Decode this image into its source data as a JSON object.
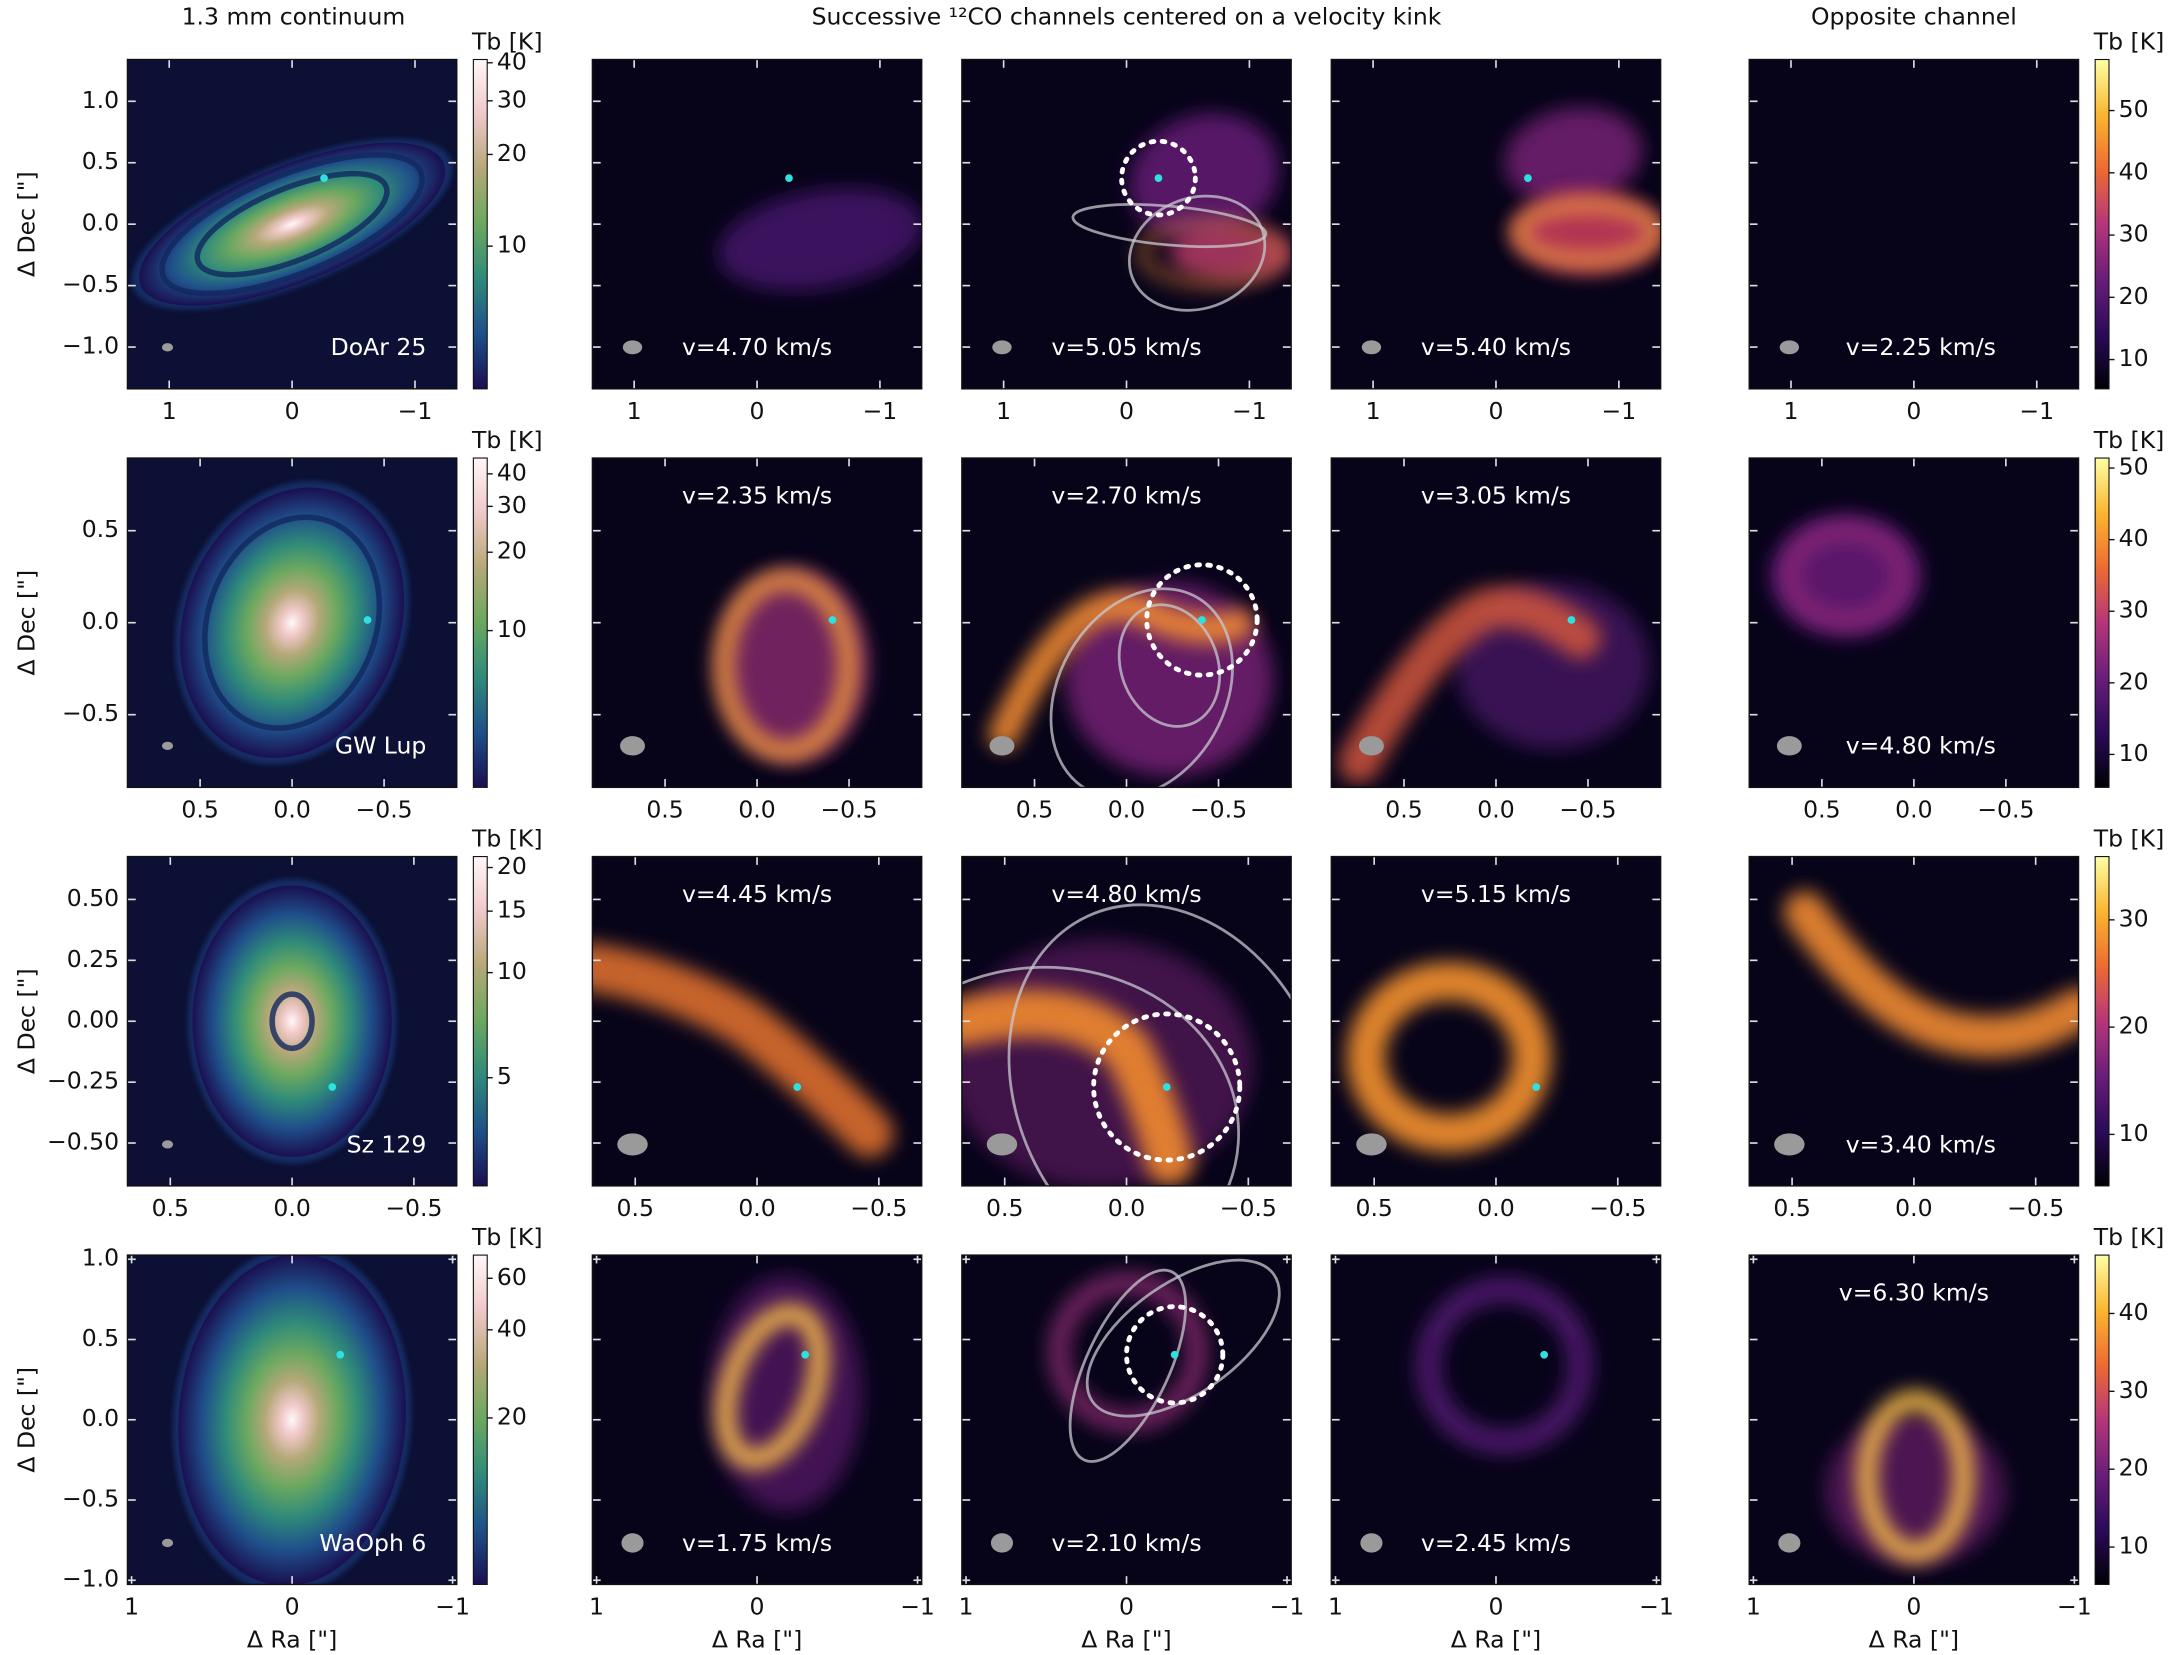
{
  "header": {
    "continuum": "1.3 mm continuum",
    "channels": "Successive ¹²CO channels centered on a velocity kink",
    "opposite": "Opposite channel"
  },
  "x_label": "Δ Ra [\"]",
  "y_label": "Δ Dec [\"]",
  "colorbar_label": "Tb [K]",
  "kink_color": "#2ee0e0",
  "kink_circle_radius": 0.3,
  "cmaps": {
    "continuum": [
      "#1a0f50",
      "#1f4f8a",
      "#2f8a7a",
      "#6aa860",
      "#b4a878",
      "#f0c8c8",
      "#fff8f8"
    ],
    "channel": [
      "#000004",
      "#2a0b5a",
      "#6a1d7a",
      "#b5367a",
      "#ef6a32",
      "#fbb630",
      "#fcffa4"
    ]
  },
  "rows": [
    {
      "source": "DoAr 25",
      "xlim": [
        1.34,
        -1.34
      ],
      "ylim": [
        -1.34,
        1.34
      ],
      "xticks": [
        1,
        0,
        {
          "value": -1,
          "label": "−1"
        }
      ],
      "yticks": [
        {
          "value": -1,
          "label": "−1.0"
        },
        {
          "value": -0.5,
          "label": "−0.5"
        },
        {
          "value": 0,
          "label": "0.0"
        },
        0.5,
        {
          "value": 1,
          "label": "1.0"
        }
      ],
      "kink": [
        -0.26,
        0.375
      ],
      "velocities": [
        "v=4.70 km/s",
        "v=5.05 km/s",
        "v=5.40 km/s",
        "v=2.25 km/s"
      ],
      "continuum_colorbar": {
        "scale": "log",
        "clim": [
          3.4,
          41
        ],
        "ticks": [
          10,
          20,
          30,
          40
        ]
      },
      "channel_colorbar": {
        "scale": "linear",
        "clim": [
          5.3,
          58.2
        ],
        "ticks": [
          10,
          20,
          30,
          40,
          50
        ]
      }
    },
    {
      "source": "GW Lup",
      "xlim": [
        0.895,
        -0.895
      ],
      "ylim": [
        -0.895,
        0.895
      ],
      "xticks": [
        0.5,
        {
          "value": 0,
          "label": "0.0"
        },
        {
          "value": -0.5,
          "label": "−0.5"
        }
      ],
      "yticks": [
        {
          "value": -0.5,
          "label": "−0.5"
        },
        {
          "value": 0,
          "label": "0.0"
        },
        0.5
      ],
      "kink": [
        -0.41,
        0.015
      ],
      "velocities": [
        "v=2.35 km/s",
        "v=2.70 km/s",
        "v=3.05 km/s",
        "v=4.80 km/s"
      ],
      "continuum_colorbar": {
        "scale": "log",
        "clim": [
          2.5,
          46
        ],
        "ticks": [
          10,
          20,
          30,
          40
        ]
      },
      "channel_colorbar": {
        "scale": "linear",
        "clim": [
          5.4,
          51.4
        ],
        "ticks": [
          10,
          20,
          30,
          40,
          50
        ]
      }
    },
    {
      "source": "Sz 129",
      "xlim": [
        0.676,
        -0.676
      ],
      "ylim": [
        -0.676,
        0.676
      ],
      "xticks": [
        0.5,
        {
          "value": 0,
          "label": "0.0"
        },
        {
          "value": -0.5,
          "label": "−0.5"
        }
      ],
      "yticks": [
        {
          "value": -0.5,
          "label": "−0.50"
        },
        {
          "value": -0.25,
          "label": "−0.25"
        },
        {
          "value": 0,
          "label": "0.00"
        },
        0.25,
        {
          "value": 0.5,
          "label": "0.50"
        }
      ],
      "kink": [
        -0.165,
        -0.27
      ],
      "velocities": [
        "v=4.45 km/s",
        "v=4.80 km/s",
        "v=5.15 km/s",
        "v=3.40 km/s"
      ],
      "continuum_colorbar": {
        "scale": "log",
        "clim": [
          2.45,
          21.5
        ],
        "ticks": [
          5,
          10,
          15,
          20
        ]
      },
      "channel_colorbar": {
        "scale": "linear",
        "clim": [
          5.2,
          35.9
        ],
        "ticks": [
          10,
          20,
          30
        ]
      }
    },
    {
      "source": "WaOph 6",
      "xlim": [
        1.026,
        -1.026
      ],
      "ylim": [
        -1.026,
        1.026
      ],
      "xticks": [
        1,
        0,
        {
          "value": -1,
          "label": "−1"
        }
      ],
      "yticks": [
        {
          "value": -1,
          "label": "−1.0"
        },
        {
          "value": -0.5,
          "label": "−0.5"
        },
        {
          "value": 0,
          "label": "0.0"
        },
        0.5,
        {
          "value": 1,
          "label": "1.0"
        }
      ],
      "kink": [
        -0.3,
        0.405
      ],
      "velocities": [
        "v=1.75 km/s",
        "v=2.10 km/s",
        "v=2.45 km/s",
        "v=6.30 km/s"
      ],
      "continuum_colorbar": {
        "scale": "log",
        "clim": [
          5.4,
          72
        ],
        "ticks": [
          20,
          40,
          60
        ]
      },
      "channel_colorbar": {
        "scale": "linear",
        "clim": [
          5.2,
          47.5
        ],
        "ticks": [
          10,
          20,
          30,
          40
        ]
      }
    }
  ]
}
